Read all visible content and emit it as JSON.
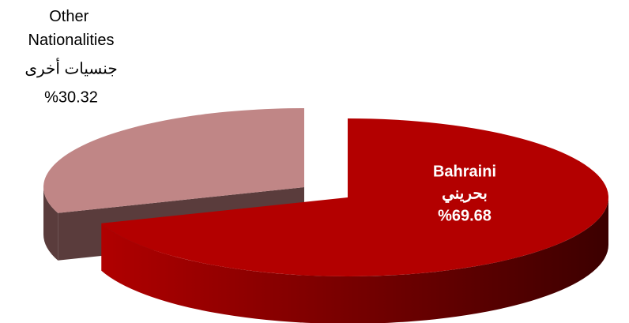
{
  "chart_data": {
    "type": "pie",
    "categories": [
      "Bahraini",
      "Other Nationalities"
    ],
    "categories_ar": [
      "بحريني",
      "جنسيات أخرى"
    ],
    "values": [
      69.68,
      30.32
    ],
    "value_labels": [
      "%69.68",
      "%30.32"
    ],
    "colors": [
      "#b30000",
      "#c08686"
    ]
  }
}
